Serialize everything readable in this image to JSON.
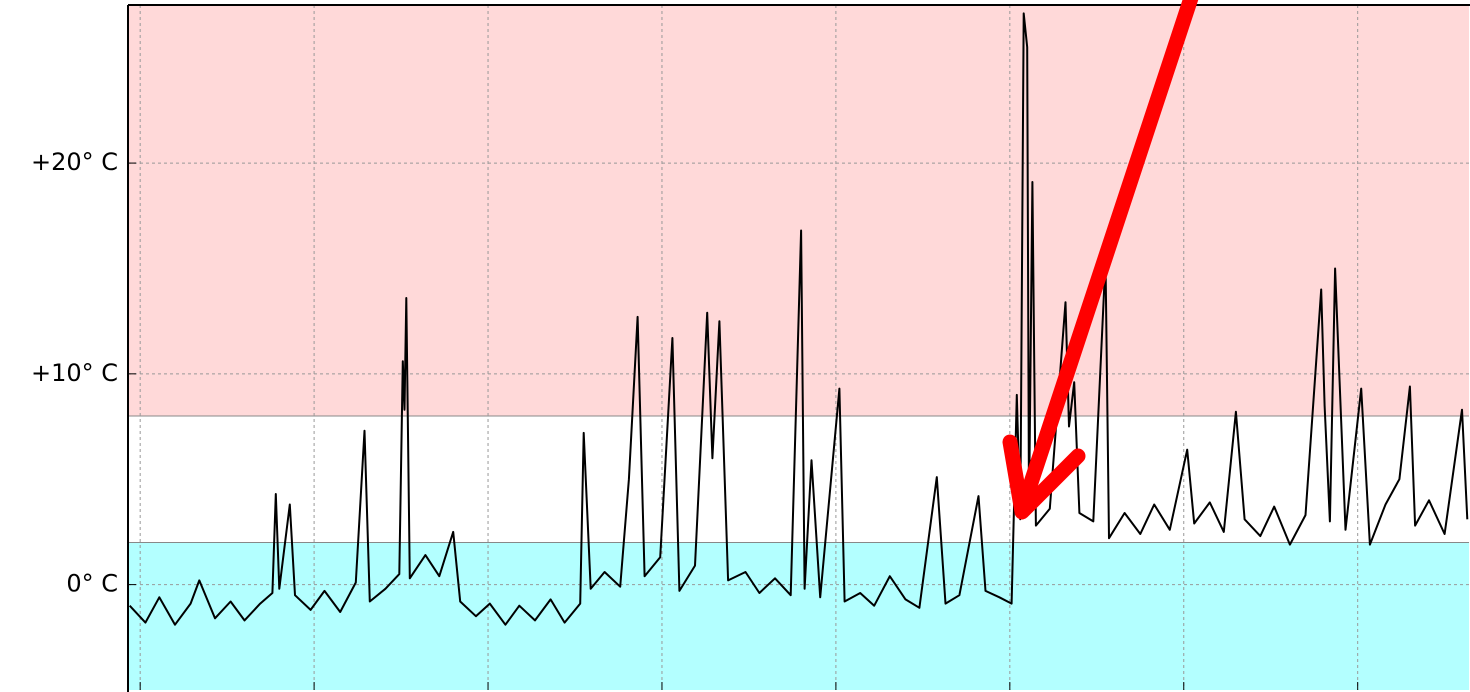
{
  "chart_data": {
    "type": "line",
    "color": "#000000",
    "xlim": [
      -0.07,
      7.64
    ],
    "xticks": [
      0,
      1,
      2,
      3,
      4,
      5,
      6,
      7
    ],
    "ylim": [
      -5,
      27.5
    ],
    "yticks": [
      {
        "value": 0,
        "label": "0° C"
      },
      {
        "value": 10,
        "label": "+10° C"
      },
      {
        "value": 20,
        "label": "+20° C"
      }
    ],
    "grid": true,
    "bands": [
      {
        "from": 8,
        "to": 27.5,
        "color": "#ffd9d9"
      },
      {
        "from": -5,
        "to": 2,
        "color": "#b3ffff"
      }
    ],
    "x": [
      -0.06,
      0.03,
      0.11,
      0.2,
      0.29,
      0.34,
      0.43,
      0.52,
      0.6,
      0.69,
      0.76,
      0.78,
      0.8,
      0.86,
      0.89,
      0.98,
      1.06,
      1.15,
      1.24,
      1.29,
      1.32,
      1.41,
      1.49,
      1.51,
      1.52,
      1.53,
      1.55,
      1.64,
      1.72,
      1.8,
      1.84,
      1.93,
      2.01,
      2.1,
      2.18,
      2.27,
      2.36,
      2.44,
      2.53,
      2.55,
      2.59,
      2.67,
      2.76,
      2.81,
      2.86,
      2.9,
      2.99,
      3.06,
      3.1,
      3.19,
      3.26,
      3.29,
      3.33,
      3.38,
      3.48,
      3.56,
      3.65,
      3.74,
      3.8,
      3.82,
      3.86,
      3.91,
      4.02,
      4.05,
      4.14,
      4.22,
      4.31,
      4.4,
      4.48,
      4.58,
      4.63,
      4.71,
      4.82,
      4.86,
      4.94,
      5.01,
      5.04,
      5.06,
      5.08,
      5.1,
      5.11,
      5.13,
      5.15,
      5.23,
      5.32,
      5.34,
      5.37,
      5.4,
      5.48,
      5.55,
      5.57,
      5.66,
      5.75,
      5.83,
      5.92,
      6.02,
      6.06,
      6.15,
      6.23,
      6.3,
      6.35,
      6.44,
      6.52,
      6.61,
      6.7,
      6.79,
      6.81,
      6.84,
      6.87,
      6.93,
      7.02,
      7.07,
      7.16,
      7.24,
      7.3,
      7.33,
      7.41,
      7.5,
      7.6,
      7.63
    ],
    "values": [
      -1.0,
      -1.8,
      -0.6,
      -1.9,
      -0.9,
      0.2,
      -1.6,
      -0.8,
      -1.7,
      -0.9,
      -0.4,
      4.3,
      -0.2,
      3.8,
      -0.5,
      -1.2,
      -0.3,
      -1.3,
      0.1,
      7.3,
      -0.8,
      -0.2,
      0.5,
      10.6,
      8.3,
      13.6,
      0.3,
      1.4,
      0.4,
      2.5,
      -0.8,
      -1.5,
      -0.9,
      -1.9,
      -1.0,
      -1.7,
      -0.7,
      -1.8,
      -0.9,
      7.2,
      -0.2,
      0.6,
      -0.1,
      5.0,
      12.7,
      0.4,
      1.3,
      11.7,
      -0.3,
      0.9,
      12.9,
      6.0,
      12.5,
      0.2,
      0.6,
      -0.4,
      0.3,
      -0.5,
      16.8,
      -0.2,
      5.9,
      -0.6,
      9.3,
      -0.8,
      -0.4,
      -1.0,
      0.4,
      -0.7,
      -1.1,
      5.1,
      -0.9,
      -0.5,
      4.2,
      -0.3,
      -0.6,
      -0.9,
      9.0,
      3.1,
      27.1,
      25.5,
      3.5,
      19.1,
      2.8,
      3.6,
      13.4,
      7.5,
      9.6,
      3.4,
      3.0,
      15.4,
      2.2,
      3.4,
      2.4,
      3.8,
      2.6,
      6.4,
      2.9,
      3.9,
      2.5,
      8.2,
      3.1,
      2.3,
      3.7,
      1.9,
      3.3,
      14.0,
      8.5,
      3.0,
      15.0,
      2.6,
      9.3,
      1.9,
      3.8,
      5.0,
      9.4,
      2.8,
      4.0,
      2.4,
      8.3,
      3.1
    ]
  }
}
